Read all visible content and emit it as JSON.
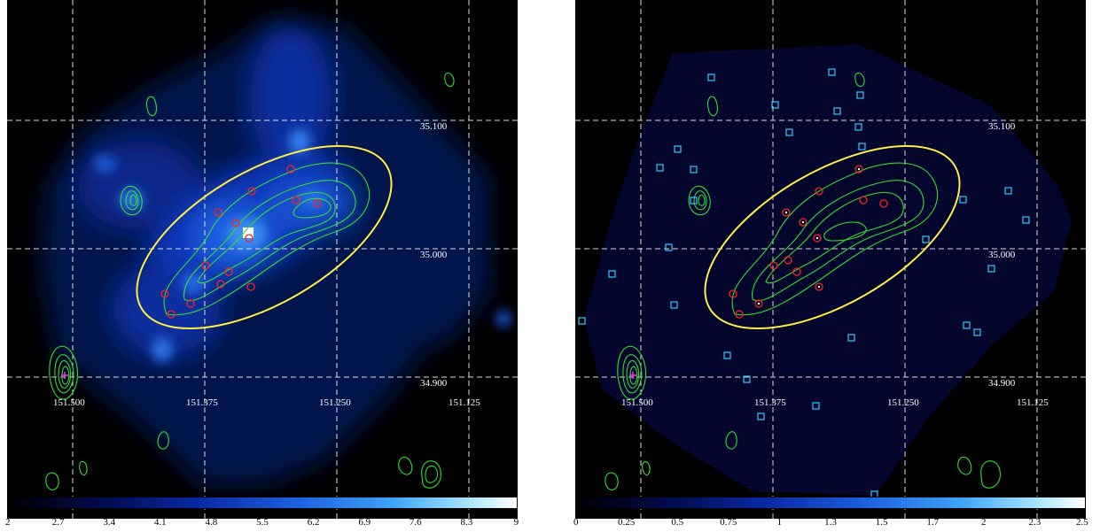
{
  "colors": {
    "background": "#000000",
    "contour": "#33dd33",
    "ellipse": "#ffee44",
    "source_circle": "#ff2020",
    "point_source_box": "#33ccff",
    "grid": "#dddddd",
    "marker": "#ff33ff"
  },
  "left_panel": {
    "ra_labels": [
      "151.500",
      "151.375",
      "151.250",
      "151.125"
    ],
    "dec_labels": [
      "35.100",
      "35.000",
      "34.900"
    ],
    "colorbar_ticks": [
      "2",
      "2.7",
      "3.4",
      "4.1",
      "4.8",
      "5.5",
      "6.2",
      "6.9",
      "7.6",
      "8.3",
      "9"
    ]
  },
  "right_panel": {
    "ra_labels": [
      "151.500",
      "151.375",
      "151.250",
      "151.125"
    ],
    "dec_labels": [
      "35.100",
      "35.000",
      "34.900"
    ],
    "colorbar_ticks": [
      "0",
      "0.25",
      "0.5",
      "0.75",
      "1",
      "1.3",
      "1.5",
      "1.7",
      "2",
      "2.3",
      "2.5"
    ]
  }
}
